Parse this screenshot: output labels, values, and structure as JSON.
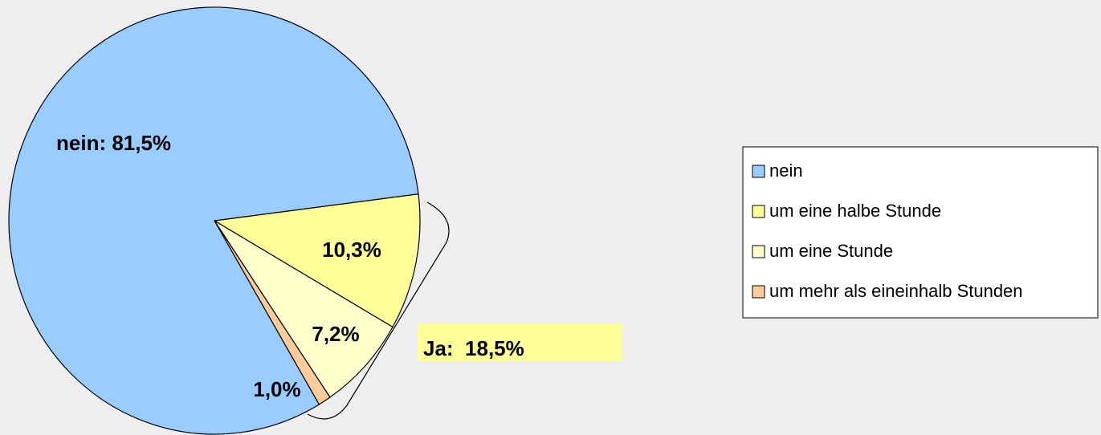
{
  "chart_data": {
    "type": "pie",
    "categories": [
      "nein",
      "um eine halbe Stunde",
      "um eine Stunde",
      "um mehr als eineinhalb Stunden"
    ],
    "values": [
      81.5,
      10.3,
      7.2,
      1.0
    ],
    "value_labels": [
      "nein: 81,5%",
      "10,3%",
      "7,2%",
      "1,0%"
    ],
    "colors": [
      "#99ccff",
      "#ffff99",
      "#ffffcc",
      "#ffcc99"
    ],
    "annotation": "Ja:  18,5%",
    "annotation_color": "#ffff99",
    "legend": "right"
  }
}
